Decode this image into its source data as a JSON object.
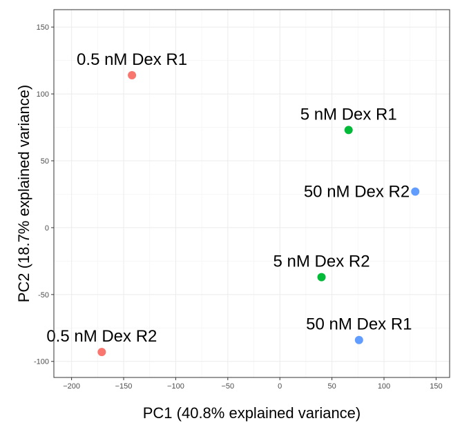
{
  "chart_data": {
    "type": "scatter",
    "title": "",
    "xlabel": "PC1 (40.8% explained variance)",
    "ylabel": "PC2 (18.7% explained variance)",
    "xlim": [
      -217,
      163
    ],
    "ylim": [
      -112,
      163
    ],
    "xticks": [
      -200,
      -150,
      -100,
      -50,
      0,
      50,
      100,
      150
    ],
    "xtick_labels": [
      "−200",
      "−150",
      "−100",
      "−50",
      "0",
      "50",
      "100",
      "150"
    ],
    "yticks": [
      -100,
      -50,
      0,
      50,
      100,
      150
    ],
    "ytick_labels": [
      "-100",
      "-50",
      "0",
      "50",
      "100",
      "150"
    ],
    "grid": true,
    "legend": "none",
    "points": [
      {
        "label": "0.5 nM Dex R1",
        "x": -142,
        "y": 114,
        "color": "#F8766D",
        "label_anchor": "middle"
      },
      {
        "label": "0.5 nM Dex R2",
        "x": -171,
        "y": -93,
        "color": "#F8766D",
        "label_anchor": "middle"
      },
      {
        "label": "5 nM Dex R1",
        "x": 66,
        "y": 73,
        "color": "#00BA38",
        "label_anchor": "middle"
      },
      {
        "label": "5 nM Dex R2",
        "x": 40,
        "y": -37,
        "color": "#00BA38",
        "label_anchor": "middle"
      },
      {
        "label": "50 nM Dex R2",
        "x": 130,
        "y": 27,
        "color": "#619CFF",
        "label_anchor": "end"
      },
      {
        "label": "50 nM Dex R1",
        "x": 76,
        "y": -84,
        "color": "#619CFF",
        "label_anchor": "middle"
      }
    ]
  }
}
